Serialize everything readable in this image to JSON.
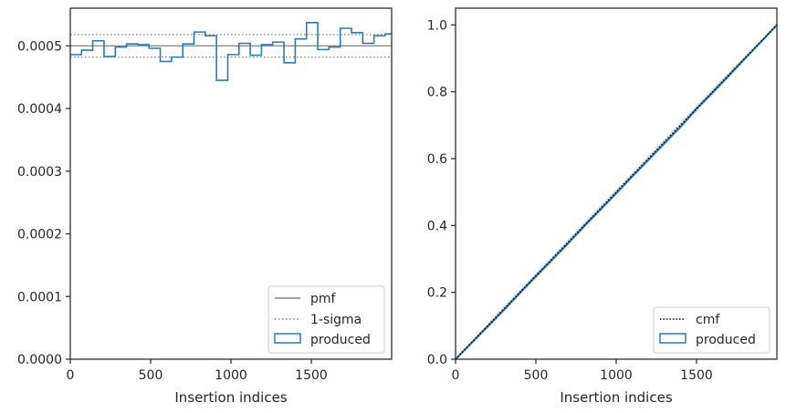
{
  "chart_data": [
    {
      "type": "line",
      "xlabel": "Insertion indices",
      "ylabel": "",
      "xlim": [
        0,
        2000
      ],
      "ylim": [
        0,
        0.00056
      ],
      "x_ticks": [
        0,
        500,
        1000,
        1500
      ],
      "x_tick_labels": [
        "0",
        "500",
        "1000",
        "1500"
      ],
      "y_ticks": [
        0,
        0.0001,
        0.0002,
        0.0003,
        0.0004,
        0.0005
      ],
      "y_tick_labels": [
        "0.0000",
        "0.0001",
        "0.0002",
        "0.0003",
        "0.0004",
        "0.0005"
      ],
      "grid": false,
      "legend_position": "lower-right",
      "reference_lines": [
        {
          "name": "pmf",
          "value": 0.0005,
          "style": "solid",
          "color": "#808080"
        },
        {
          "name": "1-sigma",
          "value": 0.000518,
          "style": "dotted",
          "color": "#808080"
        },
        {
          "name": "",
          "value": 0.000482,
          "style": "dotted",
          "color": "#808080"
        }
      ],
      "series": [
        {
          "name": "produced",
          "type": "step-histogram",
          "color": "#2b7bb0",
          "bin_edges": [
            0,
            70,
            140,
            210,
            280,
            350,
            420,
            490,
            560,
            630,
            700,
            770,
            840,
            910,
            980,
            1050,
            1120,
            1190,
            1260,
            1330,
            1400,
            1470,
            1540,
            1610,
            1680,
            1750,
            1820,
            1890,
            1960,
            2000
          ],
          "values": [
            0.000486,
            0.000493,
            0.000508,
            0.000483,
            0.000498,
            0.000503,
            0.000502,
            0.000496,
            0.000475,
            0.000482,
            0.000503,
            0.000522,
            0.000516,
            0.000445,
            0.000486,
            0.000504,
            0.000485,
            0.000502,
            0.000506,
            0.000473,
            0.000511,
            0.000537,
            0.000494,
            0.000498,
            0.000528,
            0.000521,
            0.000504,
            0.000516,
            0.000519
          ]
        }
      ],
      "legend": [
        {
          "label": "pmf",
          "kind": "solid-line"
        },
        {
          "label": "1-sigma",
          "kind": "dotted-line"
        },
        {
          "label": "produced",
          "kind": "patch"
        }
      ]
    },
    {
      "type": "line",
      "xlabel": "Insertion indices",
      "ylabel": "",
      "xlim": [
        0,
        2000
      ],
      "ylim": [
        0,
        1.05
      ],
      "x_ticks": [
        0,
        500,
        1000,
        1500
      ],
      "x_tick_labels": [
        "0",
        "500",
        "1000",
        "1500"
      ],
      "y_ticks": [
        0,
        0.2,
        0.4,
        0.6,
        0.8,
        1.0
      ],
      "y_tick_labels": [
        "0.0",
        "0.2",
        "0.4",
        "0.6",
        "0.8",
        "1.0"
      ],
      "grid": false,
      "legend_position": "lower-right",
      "series": [
        {
          "name": "cmf",
          "style": "dotted",
          "color": "#000000",
          "x": [
            0,
            2000
          ],
          "y": [
            0,
            1.0
          ]
        },
        {
          "name": "produced",
          "style": "solid",
          "color": "#2b7bb0",
          "x": [
            0,
            100,
            200,
            300,
            400,
            500,
            600,
            700,
            800,
            900,
            1000,
            1100,
            1200,
            1300,
            1400,
            1500,
            1600,
            1700,
            1800,
            1900,
            2000
          ],
          "y": [
            0,
            0.049,
            0.098,
            0.147,
            0.198,
            0.248,
            0.297,
            0.346,
            0.398,
            0.447,
            0.496,
            0.547,
            0.596,
            0.646,
            0.695,
            0.749,
            0.798,
            0.848,
            0.899,
            0.949,
            1.0
          ]
        },
        {
          "name": "",
          "style": "band",
          "color": "#c9c9c9",
          "x": [
            0,
            200,
            400,
            600,
            800,
            1000,
            1200,
            1400,
            1600,
            1800,
            2000
          ],
          "y_low": [
            0,
            0.092,
            0.192,
            0.291,
            0.391,
            0.491,
            0.591,
            0.69,
            0.79,
            0.893,
            1.0
          ],
          "y_high": [
            0,
            0.108,
            0.208,
            0.309,
            0.41,
            0.509,
            0.609,
            0.71,
            0.81,
            0.907,
            1.0
          ]
        }
      ],
      "legend": [
        {
          "label": "cmf",
          "kind": "dotted-line"
        },
        {
          "label": "produced",
          "kind": "patch"
        }
      ]
    }
  ]
}
